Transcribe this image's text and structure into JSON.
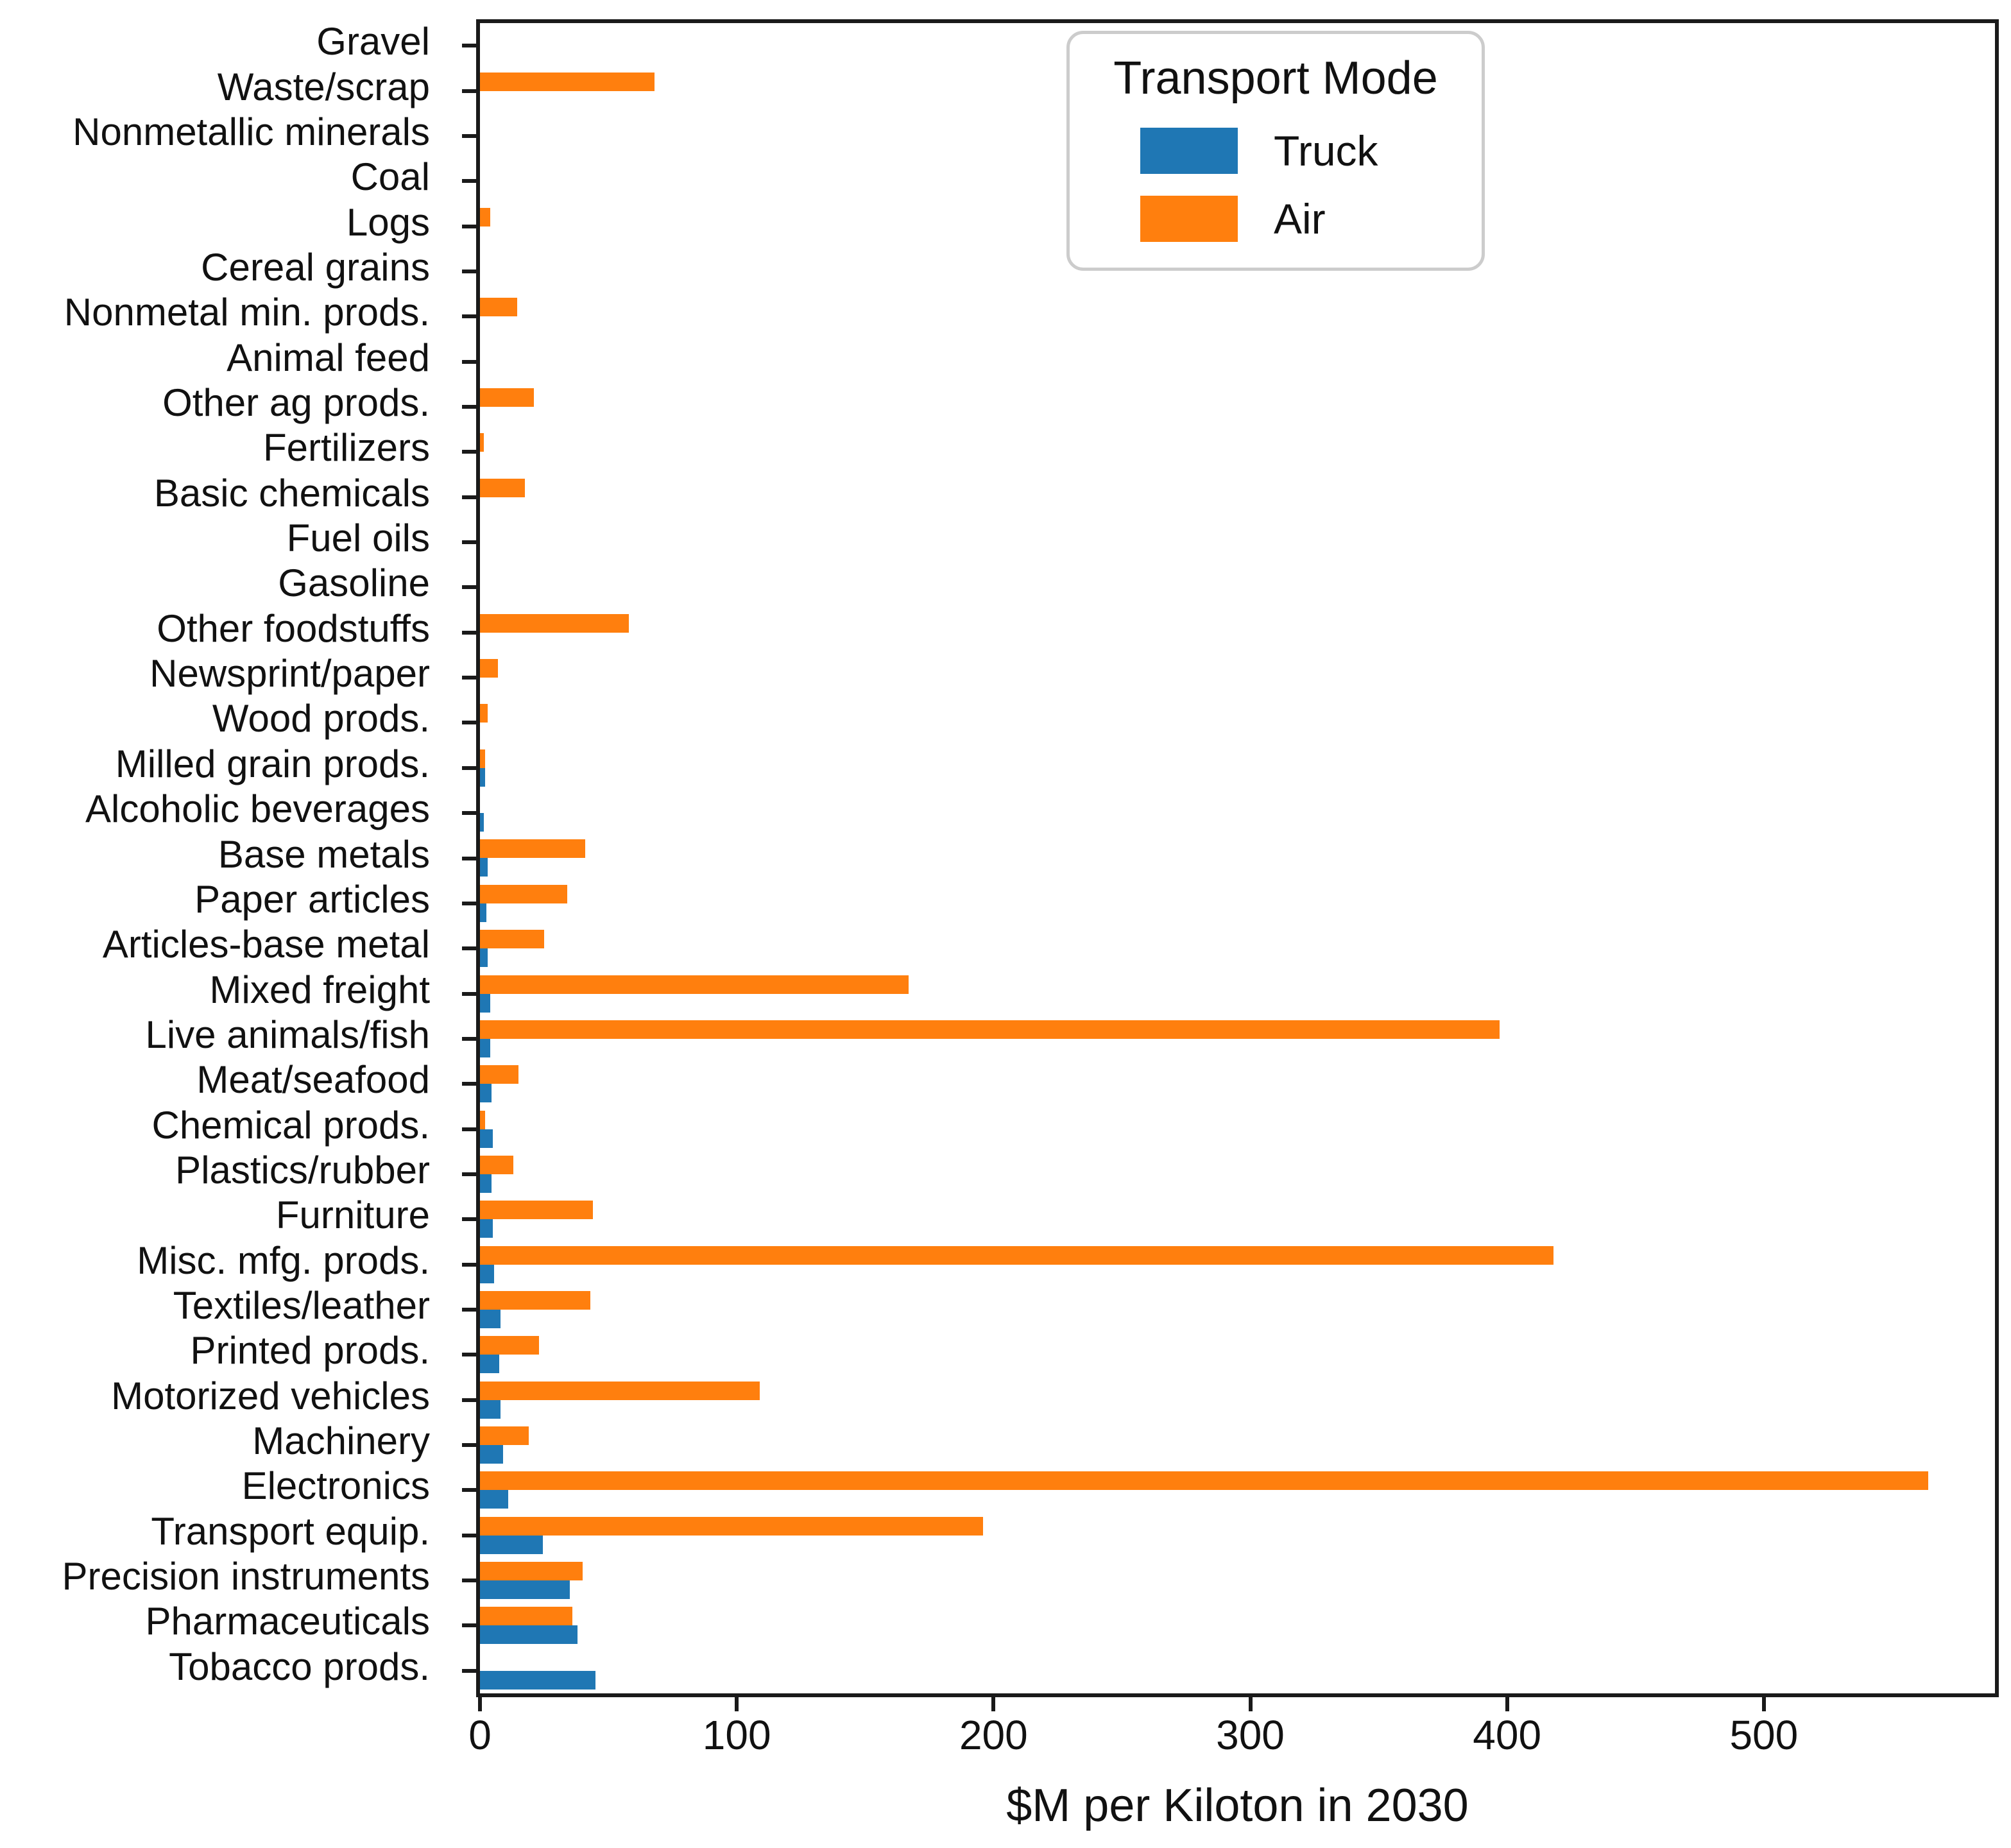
{
  "chart_data": {
    "type": "bar",
    "orientation": "horizontal",
    "title": "",
    "xlabel": "$M per Kiloton in 2030",
    "ylabel": "",
    "xlim": [
      0,
      590
    ],
    "xticks": [
      0,
      100,
      200,
      300,
      400,
      500
    ],
    "grid": false,
    "legend": {
      "title": "Transport Mode",
      "position": "upper right",
      "entries": [
        {
          "label": "Truck",
          "color": "#1f77b4"
        },
        {
          "label": "Air",
          "color": "#ff7f0e"
        }
      ]
    },
    "categories": [
      "Gravel",
      "Waste/scrap",
      "Nonmetallic minerals",
      "Coal",
      "Logs",
      "Cereal grains",
      "Nonmetal min. prods.",
      "Animal feed",
      "Other ag prods.",
      "Fertilizers",
      "Basic chemicals",
      "Fuel oils",
      "Gasoline",
      "Other foodstuffs",
      "Newsprint/paper",
      "Wood prods.",
      "Milled grain prods.",
      "Alcoholic beverages",
      "Base metals",
      "Paper articles",
      "Articles-base metal",
      "Mixed freight",
      "Live animals/fish",
      "Meat/seafood",
      "Chemical prods.",
      "Plastics/rubber",
      "Furniture",
      "Misc. mfg. prods.",
      "Textiles/leather",
      "Printed prods.",
      "Motorized vehicles",
      "Machinery",
      "Electronics",
      "Transport equip.",
      "Precision instruments",
      "Pharmaceuticals",
      "Tobacco prods."
    ],
    "series": [
      {
        "name": "Truck",
        "color": "#1f77b4",
        "values": [
          0,
          0,
          0,
          0,
          0,
          0,
          0,
          0,
          0,
          0,
          0,
          0,
          0,
          0,
          0,
          0,
          2,
          1.5,
          3,
          2.5,
          3,
          4,
          4,
          4.5,
          5,
          4.5,
          5,
          5.5,
          8,
          7.5,
          8,
          9,
          11,
          24.5,
          35,
          38,
          45
        ]
      },
      {
        "name": "Air",
        "color": "#ff7f0e",
        "values": [
          0,
          68,
          0,
          0,
          4,
          0,
          14.5,
          0,
          21,
          1.5,
          17.5,
          0,
          0,
          58,
          7,
          3,
          2,
          0,
          41,
          34,
          25,
          167,
          397,
          15,
          2,
          13,
          44,
          418,
          43,
          23,
          109,
          19,
          564,
          196,
          40,
          36,
          0
        ]
      }
    ]
  },
  "colors": {
    "axis": "#1a1a1a",
    "background": "#ffffff",
    "legend_border": "#cccccc"
  }
}
